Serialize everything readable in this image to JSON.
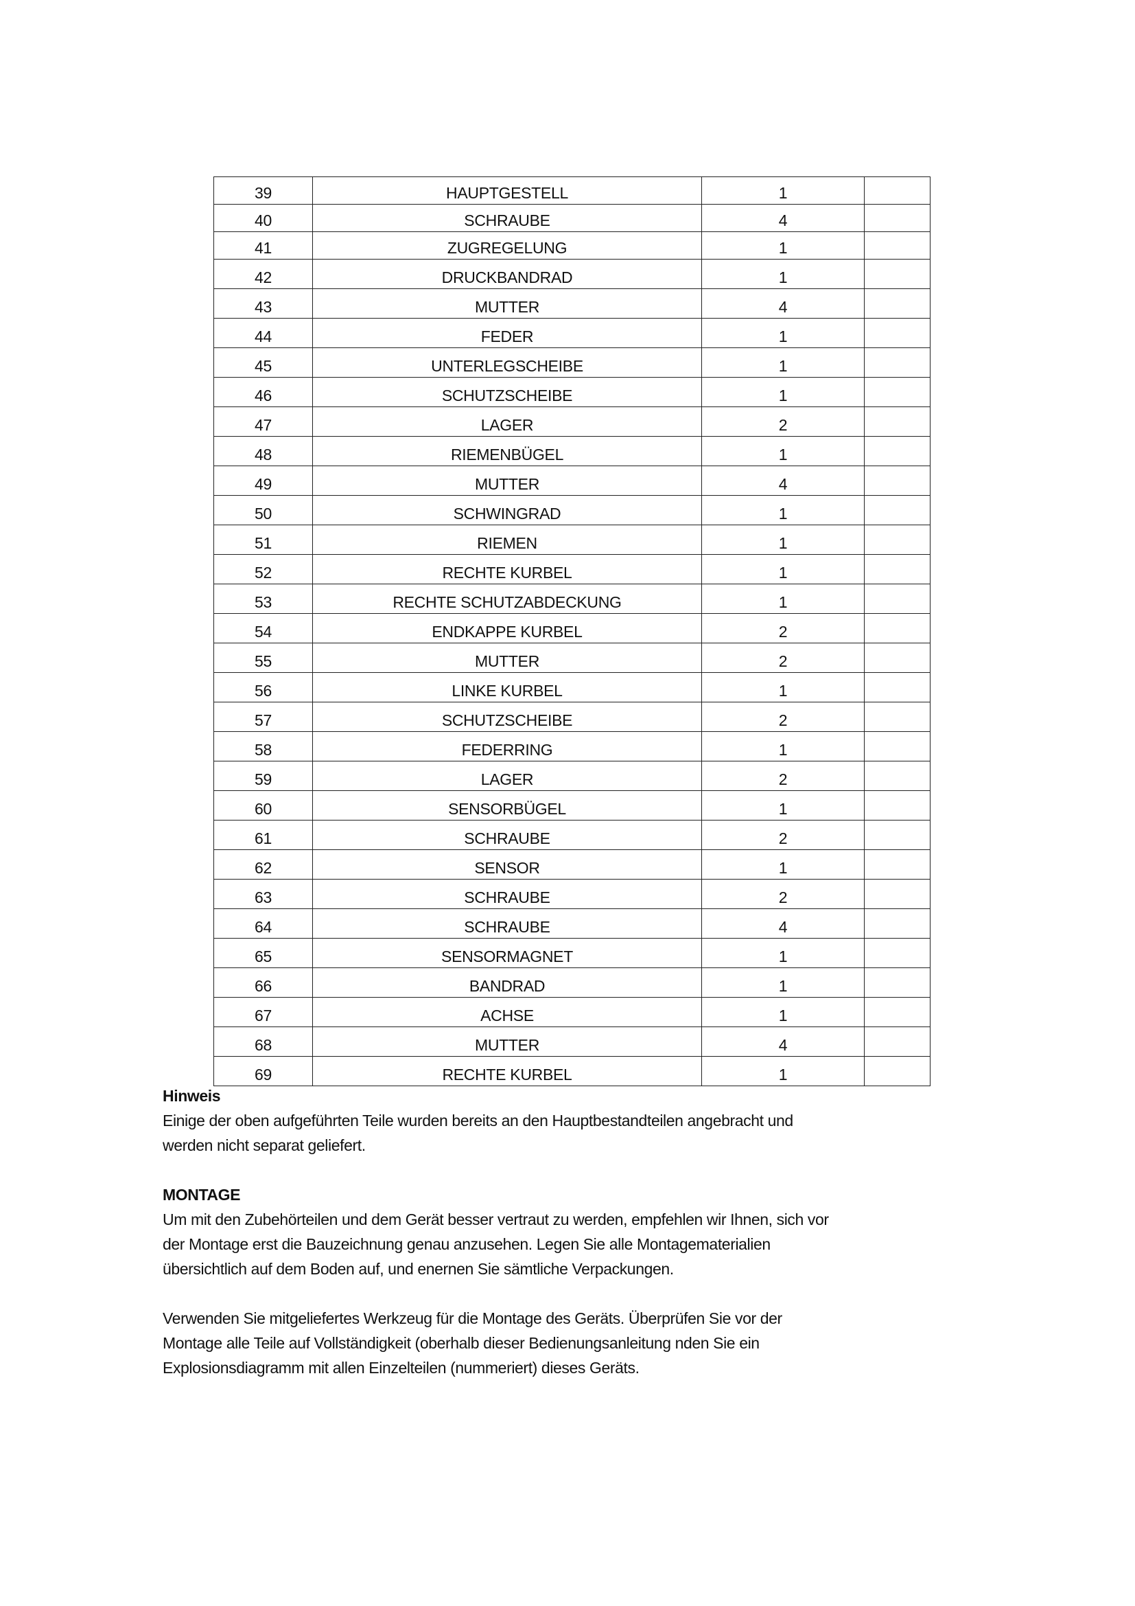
{
  "parts_table": {
    "rows": [
      [
        "39",
        "HAUPTGESTELL",
        "1",
        ""
      ],
      [
        "40",
        "SCHRAUBE",
        "4",
        ""
      ],
      [
        "41",
        "ZUGREGELUNG",
        "1",
        ""
      ],
      [
        "42",
        "DRUCKBANDRAD",
        "1",
        ""
      ],
      [
        "43",
        "MUTTER",
        "4",
        ""
      ],
      [
        "44",
        "FEDER",
        "1",
        ""
      ],
      [
        "45",
        "UNTERLEGSCHEIBE",
        "1",
        ""
      ],
      [
        "46",
        "SCHUTZSCHEIBE",
        "1",
        ""
      ],
      [
        "47",
        "LAGER",
        "2",
        ""
      ],
      [
        "48",
        "RIEMENBÜGEL",
        "1",
        ""
      ],
      [
        "49",
        "MUTTER",
        "4",
        ""
      ],
      [
        "50",
        "SCHWINGRAD",
        "1",
        ""
      ],
      [
        "51",
        "RIEMEN",
        "1",
        ""
      ],
      [
        "52",
        "RECHTE KURBEL",
        "1",
        ""
      ],
      [
        "53",
        "RECHTE SCHUTZABDECKUNG",
        "1",
        ""
      ],
      [
        "54",
        "ENDKAPPE KURBEL",
        "2",
        ""
      ],
      [
        "55",
        "MUTTER",
        "2",
        ""
      ],
      [
        "56",
        "LINKE KURBEL",
        "1",
        ""
      ],
      [
        "57",
        "SCHUTZSCHEIBE",
        "2",
        ""
      ],
      [
        "58",
        "FEDERRING",
        "1",
        ""
      ],
      [
        "59",
        "LAGER",
        "2",
        ""
      ],
      [
        "60",
        "SENSORBÜGEL",
        "1",
        ""
      ],
      [
        "61",
        "SCHRAUBE",
        "2",
        ""
      ],
      [
        "62",
        "SENSOR",
        "1",
        ""
      ],
      [
        "63",
        "SCHRAUBE",
        "2",
        ""
      ],
      [
        "64",
        "SCHRAUBE",
        "4",
        ""
      ],
      [
        "65",
        "SENSORMAGNET",
        "1",
        ""
      ],
      [
        "66",
        "BANDRAD",
        "1",
        ""
      ],
      [
        "67",
        "ACHSE",
        "1",
        ""
      ],
      [
        "68",
        "MUTTER",
        "4",
        ""
      ],
      [
        "69",
        "RECHTE KURBEL",
        "1",
        ""
      ]
    ]
  },
  "hinweis": {
    "heading": "Hinweis",
    "lines": [
      "Einige der oben aufgeführten Teile wurden bereits an den Hauptbestandteilen angebracht und",
      "werden nicht separat geliefert."
    ]
  },
  "montage": {
    "heading": "MONTAGE",
    "para1": [
      "Um mit den Zubehörteilen und dem Gerät besser vertraut zu werden, empfehlen wir Ihnen, sich vor",
      "der Montage erst die Bauzeichnung genau anzusehen. Legen Sie alle Montagematerialien",
      "übersichtlich auf dem Boden auf, und enernen Sie sämtliche Verpackungen."
    ],
    "para2": [
      "Verwenden Sie mitgeliefertes Werkzeug für die Montage des Geräts. Überprüfen Sie vor der",
      "Montage alle Teile auf Vollständigkeit (oberhalb dieser Bedienungsanleitung nden Sie ein",
      "Explosionsdiagramm mit allen Einzelteilen (nummeriert) dieses Geräts."
    ]
  }
}
